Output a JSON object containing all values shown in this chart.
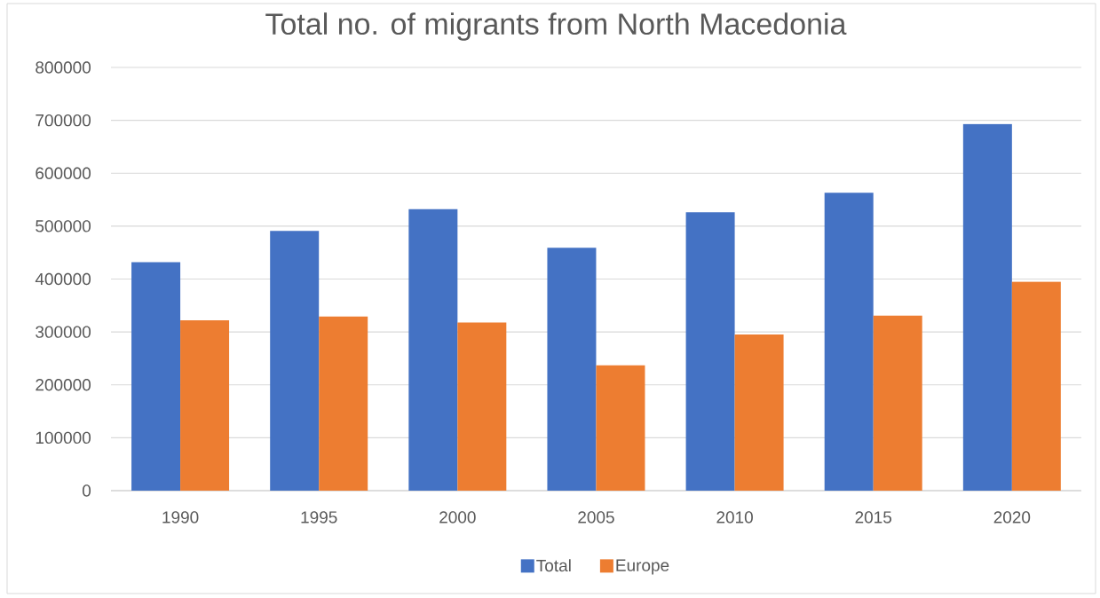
{
  "chart_data": {
    "type": "bar",
    "title": "Total no. of migrants from North Macedonia",
    "categories": [
      "1990",
      "1995",
      "2000",
      "2005",
      "2010",
      "2015",
      "2020"
    ],
    "series": [
      {
        "name": "Total",
        "color": "#4472c4",
        "values": [
          432000,
          491000,
          532000,
          459000,
          526000,
          563000,
          693000
        ]
      },
      {
        "name": "Europe",
        "color": "#ed7d31",
        "values": [
          322000,
          329000,
          318000,
          237000,
          295000,
          331000,
          395000
        ]
      }
    ],
    "ylim": [
      0,
      800000
    ],
    "yticks": [
      0,
      100000,
      200000,
      300000,
      400000,
      500000,
      600000,
      700000,
      800000
    ],
    "grid": "y",
    "legend": "bottom"
  }
}
